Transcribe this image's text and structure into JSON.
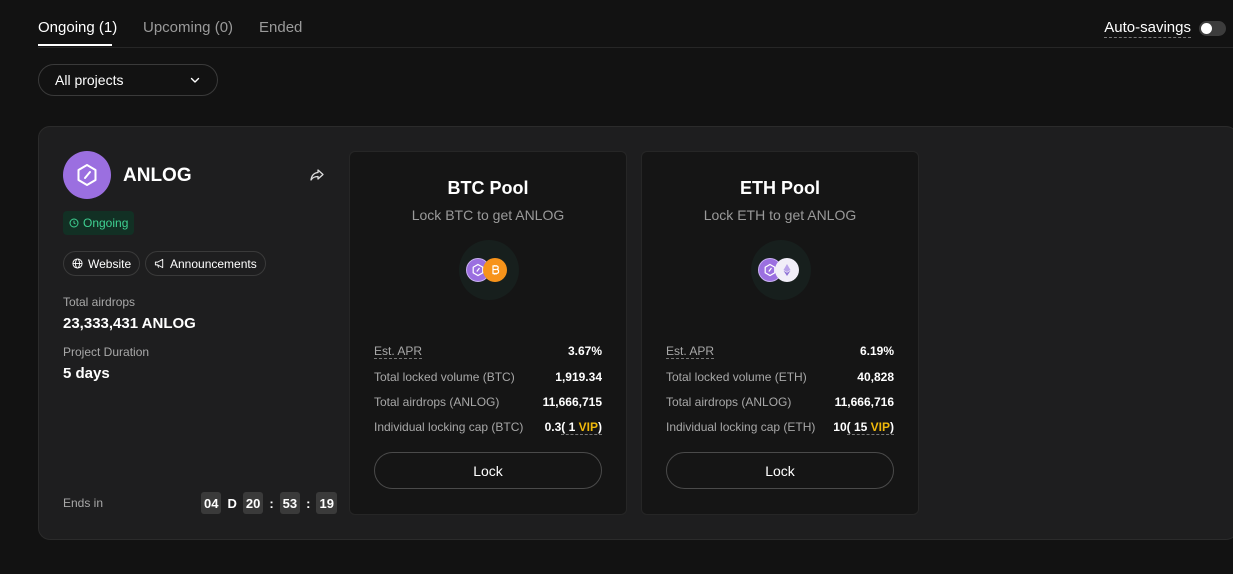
{
  "tabs": [
    {
      "label": "Ongoing (1)"
    },
    {
      "label": "Upcoming (0)"
    },
    {
      "label": "Ended"
    }
  ],
  "auto_savings": {
    "label": "Auto-savings",
    "enabled": false
  },
  "filter": {
    "selected": "All projects"
  },
  "project": {
    "name": "ANLOG",
    "status": "Ongoing",
    "links": {
      "website": "Website",
      "announcements": "Announcements"
    },
    "total_airdrops_label": "Total airdrops",
    "total_airdrops_value": "23,333,431 ANLOG",
    "duration_label": "Project Duration",
    "duration_value": "5 days",
    "ends_in_label": "Ends in",
    "countdown": {
      "days": "04",
      "day_unit": "D",
      "hours": "20",
      "minutes": "53",
      "seconds": "19"
    },
    "colors": {
      "avatar": "#9b6fe0",
      "status": "#3fd192"
    }
  },
  "pools": [
    {
      "title": "BTC Pool",
      "subtitle": "Lock BTC to get ANLOG",
      "apr_label": "Est. APR",
      "apr_value": "3.67%",
      "volume_label": "Total locked volume (BTC)",
      "volume_value": "1,919.34",
      "airdrops_label": "Total airdrops (ANLOG)",
      "airdrops_value": "11,666,715",
      "cap_label": "Individual locking cap (BTC)",
      "cap_value": "0.3",
      "cap_vip_open": "( 1",
      "cap_vip_tag": "VIP",
      "cap_vip_close": ")",
      "lock_label": "Lock",
      "coin_icon": "bitcoin-icon"
    },
    {
      "title": "ETH Pool",
      "subtitle": "Lock ETH to get ANLOG",
      "apr_label": "Est. APR",
      "apr_value": "6.19%",
      "volume_label": "Total locked volume (ETH)",
      "volume_value": "40,828",
      "airdrops_label": "Total airdrops (ANLOG)",
      "airdrops_value": "11,666,716",
      "cap_label": "Individual locking cap (ETH)",
      "cap_value": "10",
      "cap_vip_open": "( 15",
      "cap_vip_tag": "VIP",
      "cap_vip_close": ")",
      "lock_label": "Lock",
      "coin_icon": "ethereum-icon"
    }
  ],
  "accent_colors": {
    "vip": "#f0b90b",
    "bitcoin": "#f7931a"
  }
}
